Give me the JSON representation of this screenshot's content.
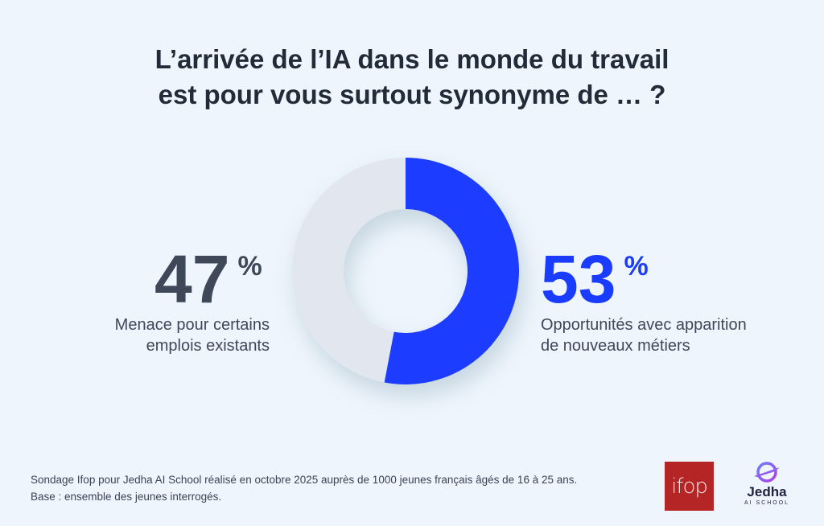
{
  "title_line1": "L’arrivée de l’IA dans le monde du travail",
  "title_line2": "est pour vous surtout synonyme de … ?",
  "chart_data": {
    "type": "pie",
    "variant": "donut",
    "title": "L’arrivée de l’IA dans le monde du travail est pour vous surtout synonyme de … ?",
    "slices": [
      {
        "label_line1": "Opportunités avec apparition",
        "label_line2": "de nouveaux métiers",
        "value": 53,
        "display": "53",
        "color": "#1a3cff"
      },
      {
        "label_line1": "Menace pour certains",
        "label_line2": "emplois existants",
        "value": 47,
        "display": "47",
        "color": "#e2e7ef"
      }
    ],
    "unit": "%"
  },
  "source_line1": "Sondage Ifop pour Jedha AI School réalisé en octobre 2025 auprès de 1000 jeunes français âgés de 16 à 25 ans.",
  "source_line2": "Base : ensemble des jeunes interrogés.",
  "logos": {
    "ifop": "ifop",
    "jedha_name": "Jedha",
    "jedha_sub": "AI SCHOOL"
  }
}
